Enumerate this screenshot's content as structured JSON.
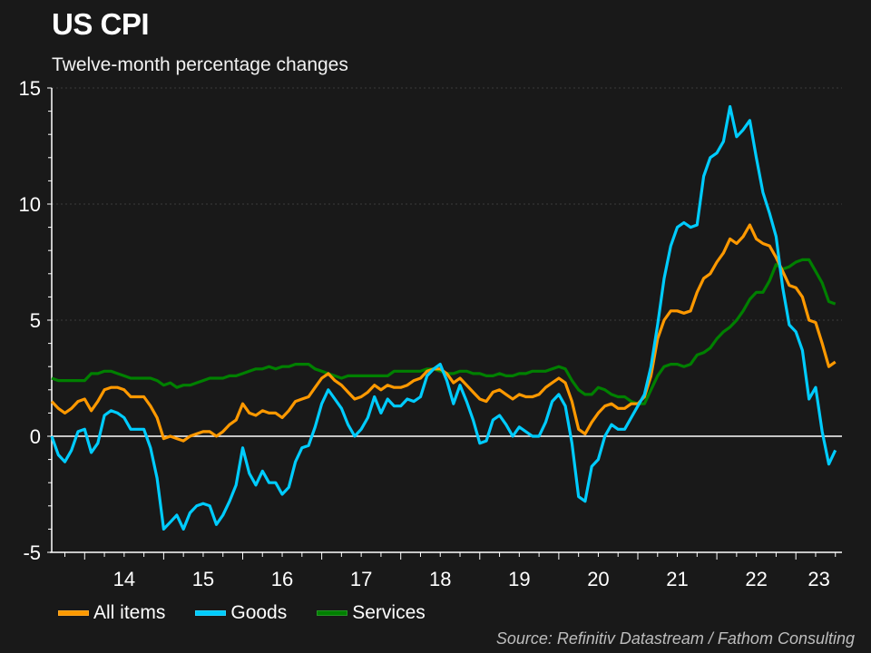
{
  "chart_data": {
    "type": "line",
    "title": "US CPI",
    "subtitle": "Twelve-month percentage changes",
    "xlabel": "",
    "ylabel": "",
    "ylim": [
      -5,
      15
    ],
    "yticks": [
      -5,
      0,
      5,
      10,
      15
    ],
    "y_minor_step": 1,
    "x_start": "2013-08",
    "x_end_axis": "2023-08",
    "xticks": [
      {
        "label": "14",
        "year": 2014
      },
      {
        "label": "15",
        "year": 2015
      },
      {
        "label": "16",
        "year": 2016
      },
      {
        "label": "17",
        "year": 2017
      },
      {
        "label": "18",
        "year": 2018
      },
      {
        "label": "19",
        "year": 2019
      },
      {
        "label": "20",
        "year": 2020
      },
      {
        "label": "21",
        "year": 2021
      },
      {
        "label": "22",
        "year": 2022
      },
      {
        "label": "23",
        "year": 2023
      }
    ],
    "grid": "horizontal dotted at major ticks",
    "zero_line": true,
    "legend_position": "bottom-left",
    "frequency": "monthly",
    "series": [
      {
        "name": "All items",
        "color": "#ff9900",
        "values": [
          1.5,
          1.2,
          1.0,
          1.2,
          1.5,
          1.6,
          1.1,
          1.5,
          2.0,
          2.1,
          2.1,
          2.0,
          1.7,
          1.7,
          1.7,
          1.3,
          0.8,
          -0.1,
          0.0,
          -0.1,
          -0.2,
          0.0,
          0.1,
          0.2,
          0.2,
          0.0,
          0.2,
          0.5,
          0.7,
          1.4,
          1.0,
          0.9,
          1.1,
          1.0,
          1.0,
          0.8,
          1.1,
          1.5,
          1.6,
          1.7,
          2.1,
          2.5,
          2.7,
          2.4,
          2.2,
          1.9,
          1.6,
          1.7,
          1.9,
          2.2,
          2.0,
          2.2,
          2.1,
          2.1,
          2.2,
          2.4,
          2.5,
          2.8,
          2.9,
          2.9,
          2.7,
          2.3,
          2.5,
          2.2,
          1.9,
          1.6,
          1.5,
          1.9,
          2.0,
          1.8,
          1.6,
          1.8,
          1.7,
          1.7,
          1.8,
          2.1,
          2.3,
          2.5,
          2.3,
          1.5,
          0.3,
          0.1,
          0.6,
          1.0,
          1.3,
          1.4,
          1.2,
          1.2,
          1.4,
          1.4,
          1.7,
          2.6,
          4.2,
          5.0,
          5.4,
          5.4,
          5.3,
          5.4,
          6.2,
          6.8,
          7.0,
          7.5,
          7.9,
          8.5,
          8.3,
          8.6,
          9.1,
          8.5,
          8.3,
          8.2,
          7.7,
          7.1,
          6.5,
          6.4,
          6.0,
          5.0,
          4.9,
          4.0,
          3.0,
          3.2
        ]
      },
      {
        "name": "Goods",
        "color": "#00ccff",
        "values": [
          0.0,
          -0.8,
          -1.1,
          -0.6,
          0.2,
          0.3,
          -0.7,
          -0.3,
          0.9,
          1.1,
          1.0,
          0.8,
          0.3,
          0.3,
          0.3,
          -0.5,
          -1.8,
          -4.0,
          -3.7,
          -3.4,
          -4.0,
          -3.3,
          -3.0,
          -2.9,
          -3.0,
          -3.8,
          -3.4,
          -2.8,
          -2.1,
          -0.5,
          -1.6,
          -2.1,
          -1.5,
          -2.0,
          -2.0,
          -2.5,
          -2.2,
          -1.1,
          -0.5,
          -0.4,
          0.4,
          1.4,
          2.0,
          1.6,
          1.2,
          0.5,
          0.0,
          0.3,
          0.8,
          1.7,
          1.0,
          1.6,
          1.3,
          1.3,
          1.6,
          1.5,
          1.7,
          2.6,
          2.9,
          3.1,
          2.4,
          1.4,
          2.2,
          1.5,
          0.7,
          -0.3,
          -0.2,
          0.7,
          0.9,
          0.5,
          0.0,
          0.4,
          0.2,
          0.0,
          0.0,
          0.6,
          1.5,
          1.8,
          1.3,
          -0.3,
          -2.6,
          -2.8,
          -1.3,
          -1.0,
          0.0,
          0.5,
          0.3,
          0.3,
          0.8,
          1.3,
          1.8,
          3.0,
          4.8,
          6.8,
          8.2,
          9.0,
          9.2,
          9.0,
          9.1,
          11.2,
          12.0,
          12.2,
          12.7,
          14.2,
          12.9,
          13.2,
          13.6,
          12.0,
          10.5,
          9.6,
          8.6,
          6.4,
          4.8,
          4.5,
          3.7,
          1.6,
          2.1,
          0.2,
          -1.2,
          -0.6
        ]
      },
      {
        "name": "Services",
        "color": "#008000",
        "values": [
          2.5,
          2.4,
          2.4,
          2.4,
          2.4,
          2.4,
          2.7,
          2.7,
          2.8,
          2.8,
          2.7,
          2.6,
          2.5,
          2.5,
          2.5,
          2.5,
          2.4,
          2.2,
          2.3,
          2.1,
          2.2,
          2.2,
          2.3,
          2.4,
          2.5,
          2.5,
          2.5,
          2.6,
          2.6,
          2.7,
          2.8,
          2.9,
          2.9,
          3.0,
          2.9,
          3.0,
          3.0,
          3.1,
          3.1,
          3.1,
          2.9,
          2.8,
          2.7,
          2.6,
          2.5,
          2.6,
          2.6,
          2.6,
          2.6,
          2.6,
          2.6,
          2.6,
          2.8,
          2.8,
          2.8,
          2.8,
          2.8,
          2.9,
          2.9,
          2.8,
          2.7,
          2.7,
          2.8,
          2.8,
          2.7,
          2.7,
          2.6,
          2.6,
          2.7,
          2.6,
          2.6,
          2.7,
          2.7,
          2.8,
          2.8,
          2.8,
          2.9,
          3.0,
          2.9,
          2.4,
          2.0,
          1.8,
          1.8,
          2.1,
          2.0,
          1.8,
          1.7,
          1.7,
          1.5,
          1.4,
          1.4,
          2.0,
          2.6,
          3.0,
          3.1,
          3.1,
          3.0,
          3.1,
          3.5,
          3.6,
          3.8,
          4.2,
          4.5,
          4.7,
          5.0,
          5.4,
          5.9,
          6.2,
          6.2,
          6.7,
          7.4,
          7.2,
          7.3,
          7.5,
          7.6,
          7.6,
          7.1,
          6.6,
          5.8,
          5.7
        ]
      }
    ],
    "source": "Source: Refinitiv Datastream / Fathom Consulting"
  }
}
